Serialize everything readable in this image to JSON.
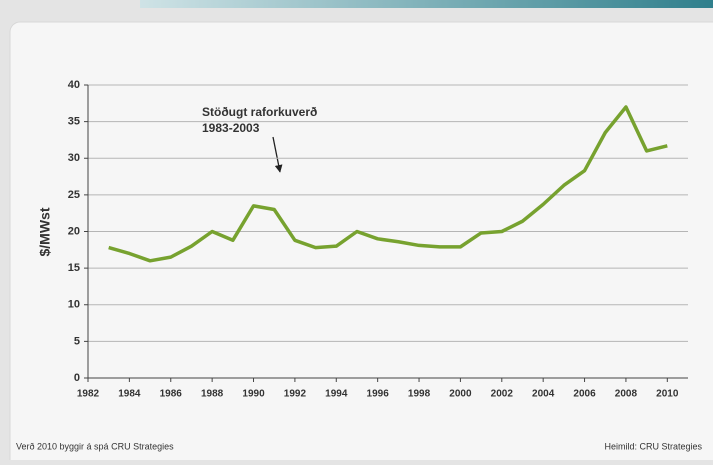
{
  "chart_data": {
    "type": "line",
    "ylabel": "$/MWst",
    "annotation": [
      "Stöðugt raforkuverð",
      "1983-2003"
    ],
    "footnote": "Verð 2010 byggir á spá CRU Strategies",
    "source": "Heimild: CRU Strategies",
    "x": [
      1983,
      1984,
      1985,
      1986,
      1987,
      1988,
      1989,
      1990,
      1991,
      1992,
      1993,
      1994,
      1995,
      1996,
      1997,
      1998,
      1999,
      2000,
      2001,
      2002,
      2003,
      2004,
      2005,
      2006,
      2007,
      2008,
      2009,
      2010
    ],
    "series": [
      {
        "color": "#77a22f",
        "values": [
          17.8,
          17.0,
          16.0,
          16.5,
          18.0,
          20.0,
          18.8,
          23.5,
          23.0,
          18.8,
          17.8,
          18.0,
          20.0,
          19.0,
          18.6,
          18.1,
          17.9,
          17.9,
          19.8,
          20.0,
          21.4,
          23.7,
          26.3,
          28.3,
          33.5,
          37.0,
          31.0,
          31.7
        ]
      }
    ],
    "xlim": [
      1982,
      2011
    ],
    "xticks": [
      1982,
      1984,
      1986,
      1988,
      1990,
      1992,
      1994,
      1996,
      1998,
      2000,
      2002,
      2004,
      2006,
      2008,
      2010
    ],
    "ylim": [
      0,
      40
    ],
    "yticks": [
      0,
      5,
      10,
      15,
      20,
      25,
      30,
      35,
      40
    ],
    "grid": true
  }
}
